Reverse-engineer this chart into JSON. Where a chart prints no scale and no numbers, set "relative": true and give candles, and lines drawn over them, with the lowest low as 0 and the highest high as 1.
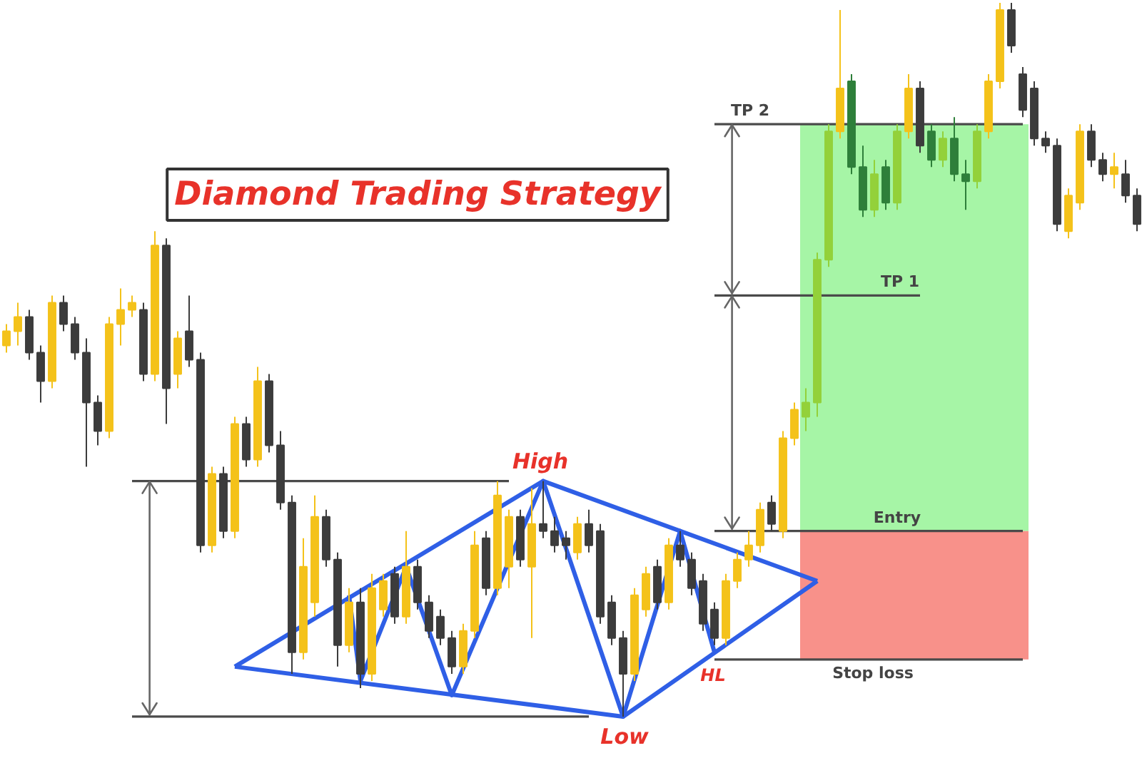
{
  "chart_data": {
    "type": "candlestick",
    "title": "Diamond Trading Strategy",
    "relative": true,
    "tick_labels": false,
    "categories": [
      null,
      null,
      null,
      null,
      null,
      null,
      null,
      null,
      null,
      null,
      null,
      null,
      null,
      null,
      null,
      null,
      null,
      null,
      null,
      null,
      null,
      null,
      null,
      null,
      null,
      null,
      null,
      null,
      null,
      null,
      null,
      null,
      null,
      null,
      null,
      null,
      null,
      null,
      null,
      null,
      null,
      null,
      null,
      null,
      null,
      null,
      null,
      null,
      null,
      null,
      null,
      null,
      null,
      null,
      null,
      null,
      null,
      null,
      null,
      null,
      null,
      null,
      null,
      null,
      null,
      null,
      null,
      null,
      null,
      null,
      null,
      null,
      null,
      null,
      null,
      null,
      null,
      null,
      null,
      null,
      null,
      null,
      null,
      null,
      null,
      null,
      null,
      null,
      null,
      null,
      null,
      null,
      null,
      null,
      null,
      null,
      null,
      null,
      null,
      null
    ],
    "ohlc": [
      [
        0.52,
        0.55,
        0.51,
        0.54
      ],
      [
        0.54,
        0.58,
        0.52,
        0.56
      ],
      [
        0.56,
        0.57,
        0.5,
        0.51
      ],
      [
        0.51,
        0.52,
        0.44,
        0.47
      ],
      [
        0.47,
        0.59,
        0.46,
        0.58
      ],
      [
        0.58,
        0.59,
        0.54,
        0.55
      ],
      [
        0.55,
        0.56,
        0.5,
        0.51
      ],
      [
        0.51,
        0.53,
        0.35,
        0.44
      ],
      [
        0.44,
        0.45,
        0.38,
        0.4
      ],
      [
        0.4,
        0.56,
        0.39,
        0.55
      ],
      [
        0.55,
        0.6,
        0.52,
        0.57
      ],
      [
        0.57,
        0.59,
        0.56,
        0.58
      ],
      [
        0.57,
        0.58,
        0.47,
        0.48
      ],
      [
        0.48,
        0.68,
        0.47,
        0.66
      ],
      [
        0.66,
        0.67,
        0.41,
        0.46
      ],
      [
        0.48,
        0.54,
        0.46,
        0.53
      ],
      [
        0.54,
        0.59,
        0.49,
        0.5
      ],
      [
        0.5,
        0.51,
        0.23,
        0.24
      ],
      [
        0.24,
        0.35,
        0.23,
        0.34
      ],
      [
        0.34,
        0.35,
        0.25,
        0.26
      ],
      [
        0.26,
        0.42,
        0.25,
        0.41
      ],
      [
        0.41,
        0.42,
        0.35,
        0.36
      ],
      [
        0.36,
        0.49,
        0.35,
        0.47
      ],
      [
        0.47,
        0.48,
        0.37,
        0.38
      ],
      [
        0.38,
        0.4,
        0.29,
        0.3
      ],
      [
        0.3,
        0.31,
        0.06,
        0.09
      ],
      [
        0.09,
        0.25,
        0.08,
        0.21
      ],
      [
        0.16,
        0.31,
        0.14,
        0.28
      ],
      [
        0.28,
        0.29,
        0.21,
        0.22
      ],
      [
        0.22,
        0.23,
        0.07,
        0.1
      ],
      [
        0.1,
        0.18,
        0.09,
        0.16
      ],
      [
        0.16,
        0.18,
        0.04,
        0.06
      ],
      [
        0.06,
        0.2,
        0.05,
        0.18
      ],
      [
        0.15,
        0.2,
        0.14,
        0.19
      ],
      [
        0.2,
        0.21,
        0.13,
        0.14
      ],
      [
        0.14,
        0.26,
        0.13,
        0.21
      ],
      [
        0.21,
        0.22,
        0.15,
        0.16
      ],
      [
        0.16,
        0.17,
        0.11,
        0.12
      ],
      [
        0.14,
        0.15,
        0.1,
        0.11
      ],
      [
        0.11,
        0.12,
        0.06,
        0.07
      ],
      [
        0.07,
        0.13,
        0.06,
        0.12
      ],
      [
        0.12,
        0.26,
        0.11,
        0.24
      ],
      [
        0.25,
        0.26,
        0.17,
        0.18
      ],
      [
        0.18,
        0.33,
        0.17,
        0.31
      ],
      [
        0.21,
        0.29,
        0.18,
        0.28
      ],
      [
        0.28,
        0.29,
        0.21,
        0.22
      ],
      [
        0.21,
        0.32,
        0.11,
        0.27
      ],
      [
        0.27,
        0.33,
        0.25,
        0.26
      ],
      [
        0.26,
        0.28,
        0.23,
        0.24
      ],
      [
        0.25,
        0.26,
        0.22,
        0.24
      ],
      [
        0.23,
        0.28,
        0.22,
        0.27
      ],
      [
        0.27,
        0.29,
        0.23,
        0.24
      ],
      [
        0.26,
        0.27,
        0.13,
        0.14
      ],
      [
        0.16,
        0.17,
        0.1,
        0.11
      ],
      [
        0.11,
        0.12,
        0.0,
        0.06
      ],
      [
        0.06,
        0.18,
        0.05,
        0.17
      ],
      [
        0.15,
        0.21,
        0.14,
        0.2
      ],
      [
        0.21,
        0.22,
        0.15,
        0.16
      ],
      [
        0.16,
        0.25,
        0.15,
        0.24
      ],
      [
        0.24,
        0.26,
        0.21,
        0.22
      ],
      [
        0.22,
        0.23,
        0.17,
        0.18
      ],
      [
        0.19,
        0.2,
        0.12,
        0.13
      ],
      [
        0.15,
        0.16,
        0.1,
        0.11
      ],
      [
        0.11,
        0.2,
        0.1,
        0.19
      ],
      [
        0.19,
        0.23,
        0.18,
        0.22
      ],
      [
        0.22,
        0.26,
        0.21,
        0.24
      ],
      [
        0.24,
        0.3,
        0.23,
        0.29
      ],
      [
        0.3,
        0.31,
        0.26,
        0.27
      ],
      [
        0.26,
        0.4,
        0.25,
        0.39
      ],
      [
        0.39,
        0.44,
        0.38,
        0.43
      ],
      [
        0.42,
        0.46,
        0.4,
        0.44
      ],
      [
        0.44,
        0.65,
        0.42,
        0.64
      ],
      [
        0.64,
        0.83,
        0.63,
        0.82
      ],
      [
        0.82,
        0.99,
        0.81,
        0.88
      ],
      [
        0.89,
        0.9,
        0.76,
        0.77
      ],
      [
        0.77,
        0.8,
        0.7,
        0.71
      ],
      [
        0.71,
        0.78,
        0.7,
        0.76
      ],
      [
        0.77,
        0.78,
        0.71,
        0.72
      ],
      [
        0.72,
        0.83,
        0.71,
        0.82
      ],
      [
        0.82,
        0.9,
        0.81,
        0.88
      ],
      [
        0.88,
        0.89,
        0.79,
        0.8
      ],
      [
        0.82,
        0.83,
        0.77,
        0.78
      ],
      [
        0.78,
        0.82,
        0.77,
        0.81
      ],
      [
        0.81,
        0.84,
        0.75,
        0.76
      ],
      [
        0.76,
        0.78,
        0.71,
        0.75
      ],
      [
        0.75,
        0.83,
        0.74,
        0.82
      ],
      [
        0.82,
        0.9,
        0.81,
        0.89
      ],
      [
        0.89,
        1.0,
        0.88,
        0.99
      ],
      [
        0.99,
        1.0,
        0.93,
        0.94
      ],
      [
        0.9,
        0.91,
        0.84,
        0.85
      ],
      [
        0.88,
        0.89,
        0.8,
        0.81
      ],
      [
        0.81,
        0.82,
        0.79,
        0.8
      ],
      [
        0.8,
        0.81,
        0.68,
        0.69
      ],
      [
        0.68,
        0.74,
        0.67,
        0.73
      ],
      [
        0.72,
        0.83,
        0.71,
        0.82
      ],
      [
        0.82,
        0.83,
        0.77,
        0.78
      ],
      [
        0.78,
        0.79,
        0.75,
        0.76
      ],
      [
        0.76,
        0.79,
        0.74,
        0.77
      ],
      [
        0.76,
        0.78,
        0.72,
        0.73
      ],
      [
        0.73,
        0.74,
        0.68,
        0.69
      ]
    ],
    "colors": [
      "#f4c21a",
      "#f4c21a",
      "#3c3c3c",
      "#3c3c3c",
      "#f4c21a",
      "#3c3c3c",
      "#3c3c3c",
      "#3c3c3c",
      "#3c3c3c",
      "#f4c21a",
      "#f4c21a",
      "#f4c21a",
      "#3c3c3c",
      "#f4c21a",
      "#3c3c3c",
      "#f4c21a",
      "#3c3c3c",
      "#3c3c3c",
      "#f4c21a",
      "#3c3c3c",
      "#f4c21a",
      "#3c3c3c",
      "#f4c21a",
      "#3c3c3c",
      "#3c3c3c",
      "#3c3c3c",
      "#f4c21a",
      "#f4c21a",
      "#3c3c3c",
      "#3c3c3c",
      "#f4c21a",
      "#3c3c3c",
      "#f4c21a",
      "#f4c21a",
      "#3c3c3c",
      "#f4c21a",
      "#3c3c3c",
      "#3c3c3c",
      "#3c3c3c",
      "#3c3c3c",
      "#f4c21a",
      "#f4c21a",
      "#3c3c3c",
      "#f4c21a",
      "#f4c21a",
      "#3c3c3c",
      "#f4c21a",
      "#3c3c3c",
      "#3c3c3c",
      "#3c3c3c",
      "#f4c21a",
      "#3c3c3c",
      "#3c3c3c",
      "#3c3c3c",
      "#3c3c3c",
      "#f4c21a",
      "#f4c21a",
      "#3c3c3c",
      "#f4c21a",
      "#3c3c3c",
      "#3c3c3c",
      "#3c3c3c",
      "#3c3c3c",
      "#f4c21a",
      "#f4c21a",
      "#f4c21a",
      "#f4c21a",
      "#3c3c3c",
      "#f4c21a",
      "#f4c21a",
      "#93d13a",
      "#93d13a",
      "#93d13a",
      "#f4c21a",
      "#2e7f3a",
      "#2e7f3a",
      "#93d13a",
      "#2e7f3a",
      "#93d13a",
      "#f4c21a",
      "#3c3c3c",
      "#2e7f3a",
      "#93d13a",
      "#2e7f3a",
      "#2e7f3a",
      "#93d13a",
      "#f4c21a",
      "#f4c21a",
      "#3c3c3c",
      "#3c3c3c",
      "#3c3c3c",
      "#3c3c3c",
      "#3c3c3c",
      "#f4c21a",
      "#f4c21a",
      "#3c3c3c",
      "#3c3c3c",
      "#f4c21a",
      "#3c3c3c",
      "#3c3c3c"
    ],
    "bands": [
      {
        "axis": "y",
        "from": 0.26,
        "to": 0.83,
        "color": "#a6f5a6"
      },
      {
        "axis": "y",
        "from": 0.08,
        "to": 0.26,
        "color": "#f8918a"
      }
    ],
    "series": [
      {
        "type": "line",
        "color": "#4a4a4a",
        "values": [
          null,
          null,
          null,
          null,
          null,
          null,
          null,
          null,
          null,
          null,
          null,
          null,
          null,
          null,
          null,
          null,
          null,
          null,
          null,
          null,
          null,
          null,
          null,
          null,
          null,
          null,
          null,
          null,
          null,
          null,
          null,
          null,
          null,
          null,
          null,
          null,
          null,
          null,
          null,
          null,
          null,
          null,
          null,
          null,
          null,
          null,
          null,
          null,
          null,
          null,
          null,
          null,
          null,
          null,
          null,
          null,
          null,
          null,
          null,
          null,
          null,
          null,
          0.83,
          null,
          null,
          null,
          null,
          null,
          null,
          null,
          null,
          null,
          null,
          null,
          null,
          null,
          null,
          null,
          null,
          null,
          null,
          null,
          null,
          null,
          null,
          null,
          null,
          null,
          null,
          0.83,
          null,
          null,
          null,
          null,
          null,
          null,
          null,
          null,
          null,
          null
        ]
      },
      {
        "type": "line",
        "color": "#4a4a4a",
        "values": [
          null,
          null,
          null,
          null,
          null,
          null,
          null,
          null,
          null,
          null,
          null,
          null,
          null,
          null,
          null,
          null,
          null,
          null,
          null,
          null,
          null,
          null,
          null,
          null,
          null,
          null,
          null,
          null,
          null,
          null,
          null,
          null,
          null,
          null,
          null,
          null,
          null,
          null,
          null,
          null,
          null,
          null,
          null,
          null,
          null,
          null,
          null,
          null,
          null,
          null,
          null,
          null,
          null,
          null,
          null,
          null,
          null,
          null,
          null,
          null,
          null,
          null,
          0.59,
          null,
          null,
          null,
          null,
          null,
          null,
          null,
          null,
          null,
          null,
          null,
          null,
          null,
          null,
          null,
          null,
          null,
          0.59,
          null,
          null,
          null,
          null,
          null,
          null,
          null,
          null,
          null,
          null,
          null,
          null,
          null,
          null,
          null,
          null,
          null,
          null,
          null
        ]
      },
      {
        "type": "line",
        "color": "#4a4a4a",
        "values": [
          null,
          null,
          null,
          null,
          null,
          null,
          null,
          null,
          null,
          null,
          null,
          null,
          null,
          null,
          null,
          null,
          null,
          null,
          null,
          null,
          null,
          null,
          null,
          null,
          null,
          null,
          null,
          null,
          null,
          null,
          null,
          null,
          null,
          null,
          null,
          null,
          null,
          null,
          null,
          null,
          null,
          null,
          null,
          null,
          null,
          null,
          null,
          null,
          null,
          null,
          null,
          null,
          null,
          null,
          null,
          null,
          null,
          null,
          null,
          null,
          null,
          null,
          0.26,
          null,
          null,
          null,
          null,
          null,
          null,
          null,
          null,
          null,
          null,
          null,
          null,
          null,
          null,
          null,
          null,
          null,
          null,
          null,
          null,
          null,
          null,
          null,
          null,
          null,
          null,
          0.26,
          null,
          null,
          null,
          null,
          null,
          null,
          null,
          null,
          null,
          null
        ]
      },
      {
        "type": "line",
        "color": "#4a4a4a",
        "values": [
          null,
          null,
          null,
          null,
          null,
          null,
          null,
          null,
          null,
          null,
          null,
          null,
          null,
          null,
          null,
          null,
          null,
          null,
          null,
          null,
          null,
          null,
          null,
          null,
          null,
          null,
          null,
          null,
          null,
          null,
          null,
          null,
          null,
          null,
          null,
          null,
          null,
          null,
          null,
          null,
          null,
          null,
          null,
          null,
          null,
          null,
          null,
          null,
          null,
          null,
          null,
          null,
          null,
          null,
          null,
          null,
          null,
          null,
          null,
          null,
          null,
          null,
          0.08,
          null,
          null,
          null,
          null,
          null,
          null,
          null,
          null,
          null,
          null,
          null,
          null,
          null,
          null,
          null,
          null,
          null,
          null,
          null,
          null,
          null,
          null,
          null,
          null,
          null,
          null,
          0.08,
          null,
          null,
          null,
          null,
          null,
          null,
          null,
          null,
          null,
          null
        ]
      },
      {
        "type": "line",
        "color": "#4a4a4a",
        "values": [
          null,
          null,
          null,
          null,
          null,
          null,
          null,
          null,
          null,
          null,
          null,
          0.33,
          null,
          null,
          null,
          null,
          null,
          null,
          null,
          null,
          null,
          null,
          null,
          null,
          null,
          null,
          null,
          null,
          null,
          null,
          null,
          null,
          null,
          null,
          null,
          null,
          null,
          null,
          null,
          null,
          null,
          null,
          null,
          null,
          0.33,
          null,
          null,
          null,
          null,
          null,
          null,
          null,
          null,
          null,
          null,
          null,
          null,
          null,
          null,
          null,
          null,
          null,
          null,
          null,
          null,
          null,
          null,
          null,
          null,
          null,
          null,
          null,
          null,
          null,
          null,
          null,
          null,
          null,
          null,
          null,
          null,
          null,
          null,
          null,
          null,
          null,
          null,
          null,
          null,
          null,
          null,
          null,
          null,
          null,
          null,
          null,
          null,
          null,
          null,
          null
        ]
      },
      {
        "type": "line",
        "color": "#4a4a4a",
        "values": [
          null,
          null,
          null,
          null,
          null,
          null,
          null,
          null,
          null,
          null,
          null,
          0.0,
          null,
          null,
          null,
          null,
          null,
          null,
          null,
          null,
          null,
          null,
          null,
          null,
          null,
          null,
          null,
          null,
          null,
          null,
          null,
          null,
          null,
          null,
          null,
          null,
          null,
          null,
          null,
          null,
          null,
          null,
          null,
          null,
          null,
          null,
          null,
          null,
          null,
          null,
          null,
          0.0,
          null,
          null,
          null,
          null,
          null,
          null,
          null,
          null,
          null,
          null,
          null,
          null,
          null,
          null,
          null,
          null,
          null,
          null,
          null,
          null,
          null,
          null,
          null,
          null,
          null,
          null,
          null,
          null,
          null,
          null,
          null,
          null,
          null,
          null,
          null,
          null,
          null,
          null,
          null,
          null,
          null,
          null,
          null,
          null,
          null,
          null,
          null,
          null
        ]
      },
      {
        "type": "line",
        "color": "#2f5fe6",
        "values": [
          null,
          null,
          null,
          null,
          null,
          null,
          null,
          null,
          null,
          null,
          null,
          null,
          null,
          null,
          null,
          null,
          null,
          null,
          null,
          null,
          0.07,
          null,
          null,
          null,
          null,
          null,
          null,
          null,
          null,
          null,
          null,
          null,
          null,
          null,
          null,
          null,
          null,
          null,
          null,
          null,
          null,
          null,
          null,
          null,
          null,
          null,
          null,
          0.33,
          null,
          null,
          null,
          null,
          null,
          null,
          null,
          null,
          null,
          null,
          null,
          null,
          null,
          null,
          null,
          null,
          null,
          null,
          null,
          null,
          null,
          null,
          null,
          0.19,
          null,
          null,
          null,
          null,
          null,
          null,
          null,
          null,
          null,
          null,
          null,
          null,
          null,
          null,
          null,
          null,
          null,
          null,
          null,
          null,
          null,
          null,
          null,
          null,
          null,
          null,
          null,
          null
        ]
      },
      {
        "type": "line",
        "color": "#2f5fe6",
        "values": [
          null,
          null,
          null,
          null,
          null,
          null,
          null,
          null,
          null,
          null,
          null,
          null,
          null,
          null,
          null,
          null,
          null,
          null,
          null,
          null,
          0.07,
          null,
          null,
          null,
          null,
          null,
          null,
          null,
          null,
          null,
          null,
          null,
          null,
          null,
          null,
          null,
          null,
          null,
          null,
          null,
          null,
          null,
          null,
          null,
          null,
          null,
          null,
          null,
          null,
          null,
          null,
          null,
          null,
          null,
          0.0,
          null,
          null,
          null,
          null,
          null,
          null,
          null,
          null,
          null,
          null,
          null,
          null,
          null,
          null,
          null,
          null,
          0.19,
          null,
          null,
          null,
          null,
          null,
          null,
          null,
          null,
          null,
          null,
          null,
          null,
          null,
          null,
          null,
          null,
          null,
          null,
          null,
          null,
          null,
          null,
          null,
          null,
          null,
          null,
          null,
          null
        ]
      },
      {
        "type": "line",
        "color": "#2f5fe6",
        "values": [
          null,
          null,
          null,
          null,
          null,
          null,
          null,
          null,
          null,
          null,
          null,
          null,
          null,
          null,
          null,
          null,
          null,
          null,
          null,
          null,
          null,
          null,
          null,
          null,
          null,
          null,
          null,
          null,
          null,
          null,
          0.17,
          0.05,
          null,
          null,
          null,
          0.21,
          null,
          null,
          null,
          0.03,
          null,
          null,
          null,
          null,
          null,
          null,
          null,
          0.33,
          null,
          null,
          null,
          null,
          null,
          null,
          0.0,
          null,
          null,
          null,
          null,
          0.26,
          null,
          null,
          0.09,
          null,
          null,
          null,
          null,
          null,
          null,
          null,
          null,
          null,
          null,
          null,
          null,
          null,
          null,
          null,
          null,
          null,
          null,
          null,
          null,
          null,
          null,
          null,
          null,
          null,
          null,
          null,
          null,
          null,
          null,
          null,
          null,
          null,
          null,
          null,
          null,
          null
        ]
      }
    ],
    "annotations": [
      {
        "text": "High",
        "y": 0.33
      },
      {
        "text": "Low",
        "y": 0.0
      },
      {
        "text": "HL",
        "y": 0.09
      },
      {
        "text": "TP 2",
        "y": 0.83
      },
      {
        "text": "TP 1",
        "y": 0.59
      },
      {
        "text": "Entry",
        "y": 0.26
      },
      {
        "text": "Stop loss",
        "y": 0.08
      }
    ]
  }
}
